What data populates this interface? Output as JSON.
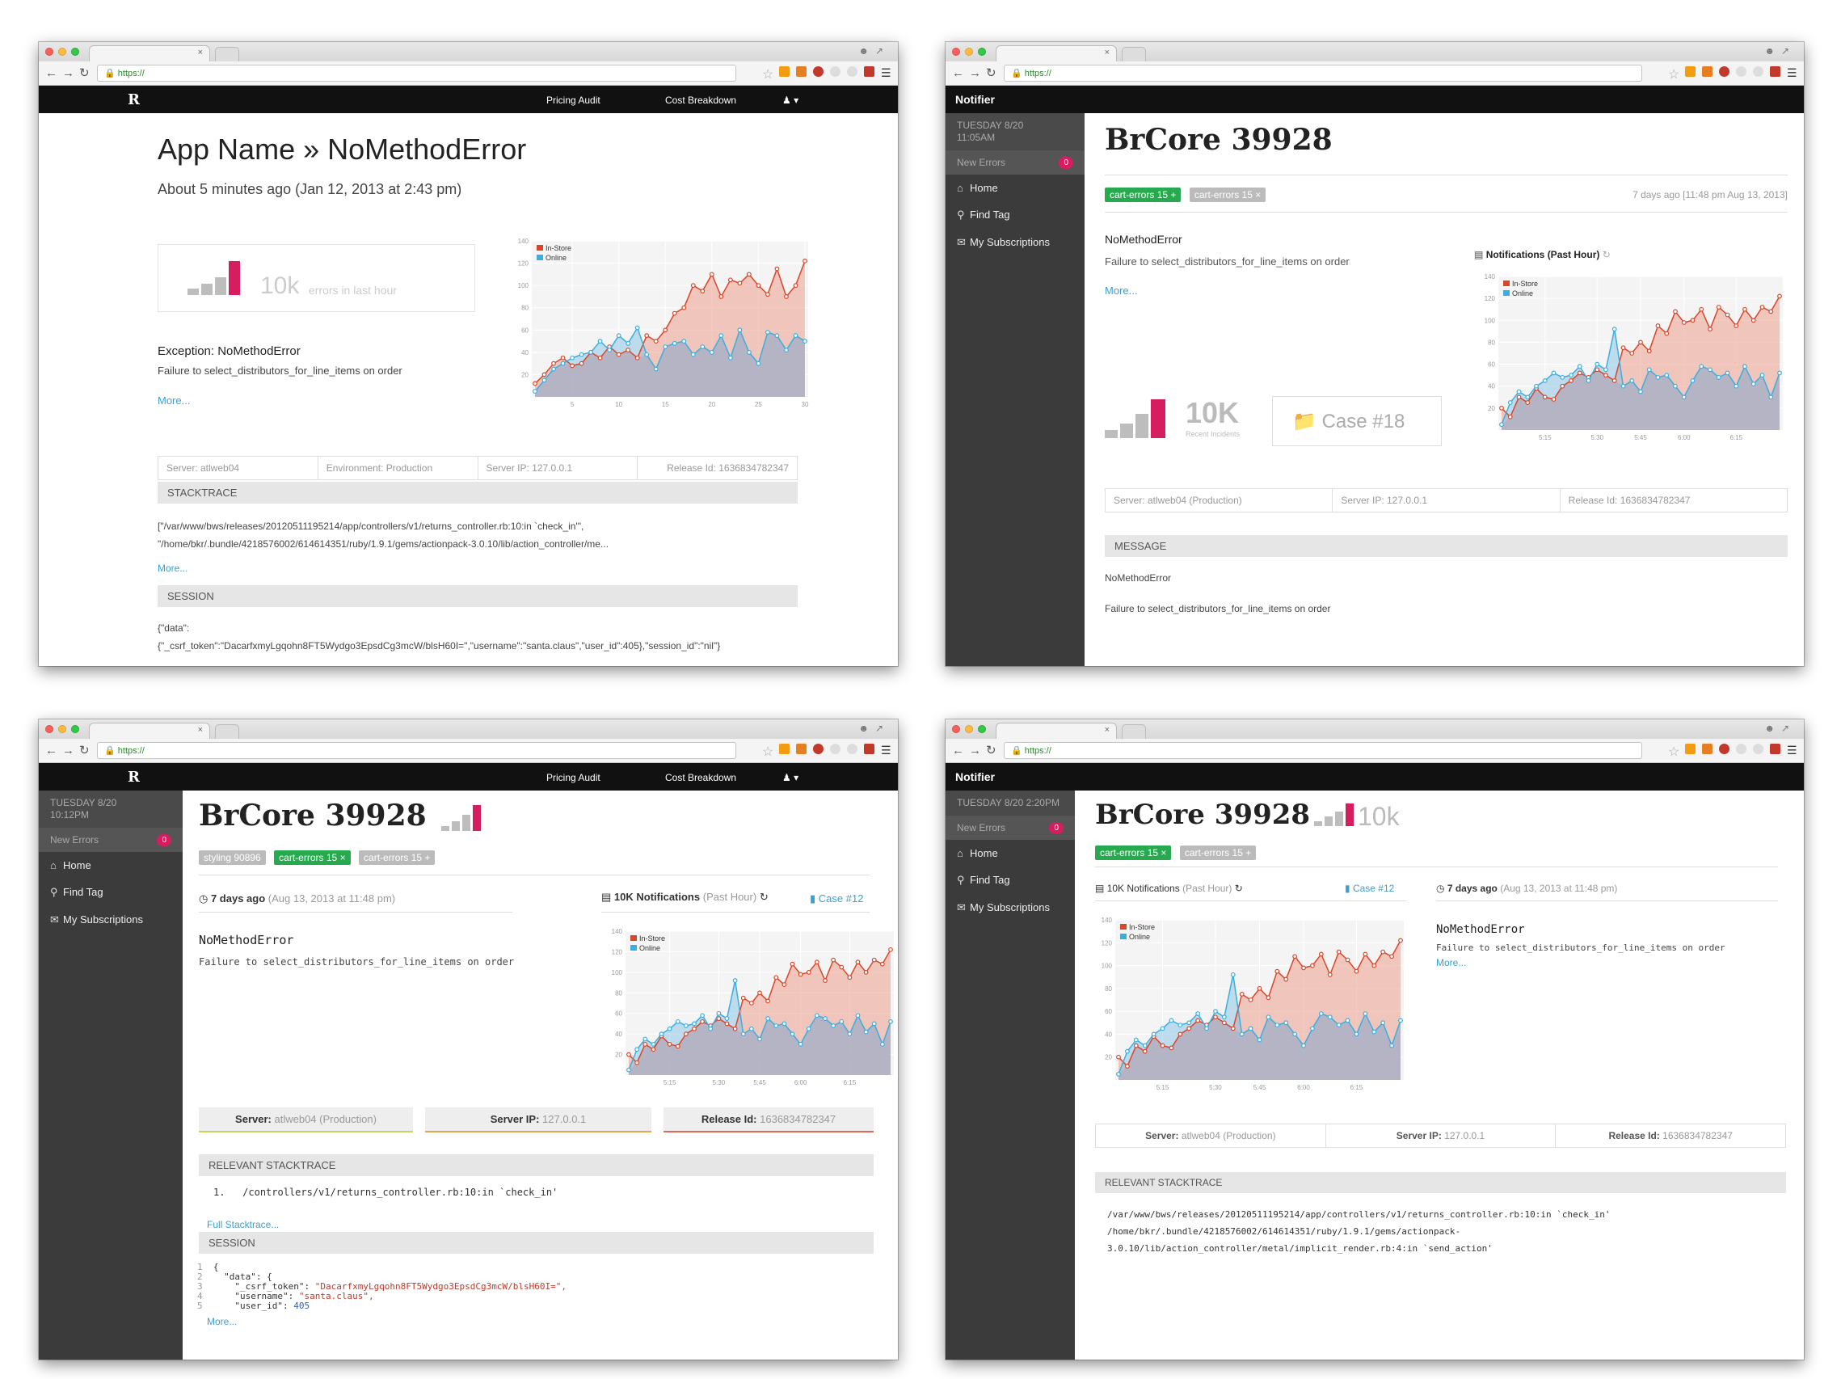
{
  "browser": {
    "url": "https://",
    "tab_close": "×"
  },
  "colors": {
    "instore": "#d9462a",
    "online": "#3aaee0",
    "accent": "#d61d5f",
    "tag_green": "#27a94f"
  },
  "icons": [
    "close-icon",
    "back-icon",
    "forward-icon",
    "reload-icon",
    "lock-icon",
    "star-icon",
    "menu-icon",
    "user-icon",
    "home-icon",
    "search-icon",
    "envelope-icon",
    "folder-icon",
    "clock-icon",
    "chart-icon",
    "refresh-icon"
  ],
  "nav": {
    "logo": "R",
    "pricing": "Pricing Audit",
    "cost": "Cost Breakdown",
    "notifier": "Notifier"
  },
  "sidebar": {
    "new_errors": "New Errors",
    "new_errors_count": "0",
    "home": "Home",
    "find_tag": "Find Tag",
    "subscriptions": "My Subscriptions"
  },
  "w1": {
    "title": "App Name » NoMethodError",
    "subtitle": "About 5 minutes ago (Jan 12, 2013 at 2:43 pm)",
    "count": "10k",
    "count_label": "errors in last hour",
    "exception": "Exception: NoMethodError",
    "failure": "Failure to select_distributors_for_line_items on order",
    "more": "More...",
    "server": "Server: atlweb04",
    "environment": "Environment: Production",
    "server_ip": "Server IP: 127.0.0.1",
    "release": "Release Id: 1636834782347",
    "stacktrace_title": "STACKTRACE",
    "stack1": "[\"/var/www/bws/releases/20120511195214/app/controllers/v1/returns_controller.rb:10:in `check_in'\",",
    "stack2": "\"/home/bkr/.bundle/4218576002/614614351/ruby/1.9.1/gems/actionpack-3.0.10/lib/action_controller/me...",
    "session_title": "SESSION",
    "session1": "{\"data\":",
    "session2": "{\"_csrf_token\":\"DacarfxmyLgqohn8FT5Wydgo3EpsdCg3mcW/blsH60I=\",\"username\":\"santa.claus\",\"user_id\":405},\"session_id\":\"nil\"}"
  },
  "w2": {
    "date1": "TUESDAY 8/20",
    "date2": "11:05AM",
    "title": "BrCore 39928",
    "tag1": "cart-errors",
    "tag1_count": "15",
    "tag1_action": "+",
    "tag2": "cart-errors",
    "tag2_count": "15",
    "tag2_action": "×",
    "time": "7 days ago [11:48 pm Aug 13, 2013]",
    "error": "NoMethodError",
    "failure": "Failure to select_distributors_for_line_items on order",
    "more": "More...",
    "chart_title": "Notifications (Past Hour)",
    "count": "10K",
    "count_label": "Recent Incidents",
    "case": "Case #18",
    "server": "Server: atlweb04 (Production)",
    "server_ip": "Server IP: 127.0.0.1",
    "release": "Release Id: 1636834782347",
    "message_title": "MESSAGE",
    "msg1": "NoMethodError",
    "msg2": "Failure to select_distributors_for_line_items on order"
  },
  "w3": {
    "date1": "TUESDAY 8/20",
    "date2": "10:12PM",
    "title": "BrCore 39928",
    "tag0": "styling 90896",
    "tag1": "cart-errors",
    "tag1_count": "15",
    "tag1_action": "×",
    "tag2": "cart-errors",
    "tag2_count": "15",
    "tag2_action": "+",
    "time_bold": "7 days ago",
    "time_rest": "(Aug 13, 2013 at 11:48 pm)",
    "notif_bold": "10K Notifications",
    "notif_rest": "(Past Hour)",
    "case": "Case #12",
    "error": "NoMethodError",
    "failure": "Failure to select_distributors_for_line_items on order",
    "server_b": "Server:",
    "server": "atlweb04 (Production)",
    "ip_b": "Server IP:",
    "ip": "127.0.0.1",
    "rel_b": "Release Id:",
    "rel": "1636834782347",
    "stack_title": "RELEVANT STACKTRACE",
    "stack_num": "1.",
    "stack_line": "/controllers/v1/returns_controller.rb:10:in `check_in'",
    "full_stack": "Full Stacktrace...",
    "session_title": "SESSION",
    "s1": "{",
    "s2k": "\"data\": {",
    "s3k": "\"_csrf_token\":",
    "s3v": "\"DacarfxmyLgqohn8FT5Wydgo3EpsdCg3mcW/blsH60I=\",",
    "s4k": "\"username\":",
    "s4v": "\"santa.claus\",",
    "s5k": "\"user_id\":",
    "s5v": "405",
    "more": "More..."
  },
  "w4": {
    "date": "TUESDAY 8/20 2:20PM",
    "title": "BrCore 39928",
    "count": "10k",
    "tag1": "cart-errors",
    "tag1_count": "15",
    "tag1_action": "×",
    "tag2": "cart-errors",
    "tag2_count": "15",
    "tag2_action": "+",
    "notif_bold": "10K Notifications",
    "notif_rest": "(Past Hour)",
    "case": "Case #12",
    "time_bold": "7 days ago",
    "time_rest": "(Aug 13, 2013 at 11:48 pm)",
    "error": "NoMethodError",
    "failure": "Failure to select_distributors_for_line_items on order",
    "more": "More...",
    "server_b": "Server:",
    "server": "atlweb04 (Production)",
    "ip_b": "Server IP:",
    "ip": "127.0.0.1",
    "rel_b": "Release Id:",
    "rel": "1636834782347",
    "stack_title": "RELEVANT STACKTRACE",
    "st1": "/var/www/bws/releases/20120511195214/app/controllers/v1/returns_controller.rb:10:in `check_in'",
    "st2": "/home/bkr/.bundle/4218576002/614614351/ruby/1.9.1/gems/actionpack-",
    "st3": "3.0.10/lib/action_controller/metal/implicit_render.rb:4:in `send_action'"
  },
  "chart_data": [
    {
      "type": "area",
      "legend": "top-left",
      "ylim": [
        0,
        140
      ],
      "yticks": [
        20,
        40,
        60,
        80,
        100,
        120,
        140
      ],
      "xticks": [
        5,
        10,
        15,
        20,
        25,
        30
      ],
      "x": [
        1,
        2,
        3,
        4,
        5,
        6,
        7,
        8,
        9,
        10,
        11,
        12,
        13,
        14,
        15,
        16,
        17,
        18,
        19,
        20,
        21,
        22,
        23,
        24,
        25,
        26,
        27,
        28,
        29,
        30
      ],
      "series": [
        {
          "name": "In-Store",
          "values": [
            12,
            20,
            30,
            35,
            28,
            30,
            40,
            35,
            45,
            38,
            42,
            35,
            55,
            50,
            60,
            75,
            80,
            100,
            95,
            110,
            90,
            105,
            102,
            110,
            100,
            92,
            115,
            90,
            100,
            122
          ]
        },
        {
          "name": "Online",
          "values": [
            5,
            15,
            25,
            30,
            35,
            38,
            40,
            50,
            42,
            55,
            48,
            62,
            38,
            25,
            45,
            48,
            50,
            38,
            45,
            40,
            55,
            35,
            60,
            40,
            30,
            58,
            55,
            42,
            55,
            50
          ]
        }
      ]
    },
    {
      "type": "area",
      "legend": "top-left",
      "ylim": [
        0,
        140
      ],
      "yticks": [
        20,
        40,
        60,
        80,
        100,
        120,
        140
      ],
      "xticks": [
        "5:15",
        "5:30",
        "5:45",
        "6:00",
        "6:15"
      ],
      "series": [
        {
          "name": "In-Store",
          "values": [
            20,
            12,
            30,
            25,
            38,
            30,
            28,
            40,
            45,
            52,
            48,
            55,
            50,
            45,
            75,
            70,
            80,
            72,
            95,
            88,
            108,
            98,
            100,
            110,
            92,
            112,
            105,
            95,
            110,
            100,
            112,
            108,
            122
          ]
        },
        {
          "name": "Online",
          "values": [
            5,
            25,
            35,
            30,
            40,
            45,
            52,
            48,
            50,
            58,
            45,
            60,
            55,
            92,
            40,
            45,
            35,
            55,
            48,
            50,
            40,
            30,
            45,
            58,
            55,
            48,
            52,
            40,
            58,
            42,
            50,
            30,
            52
          ]
        }
      ]
    }
  ]
}
